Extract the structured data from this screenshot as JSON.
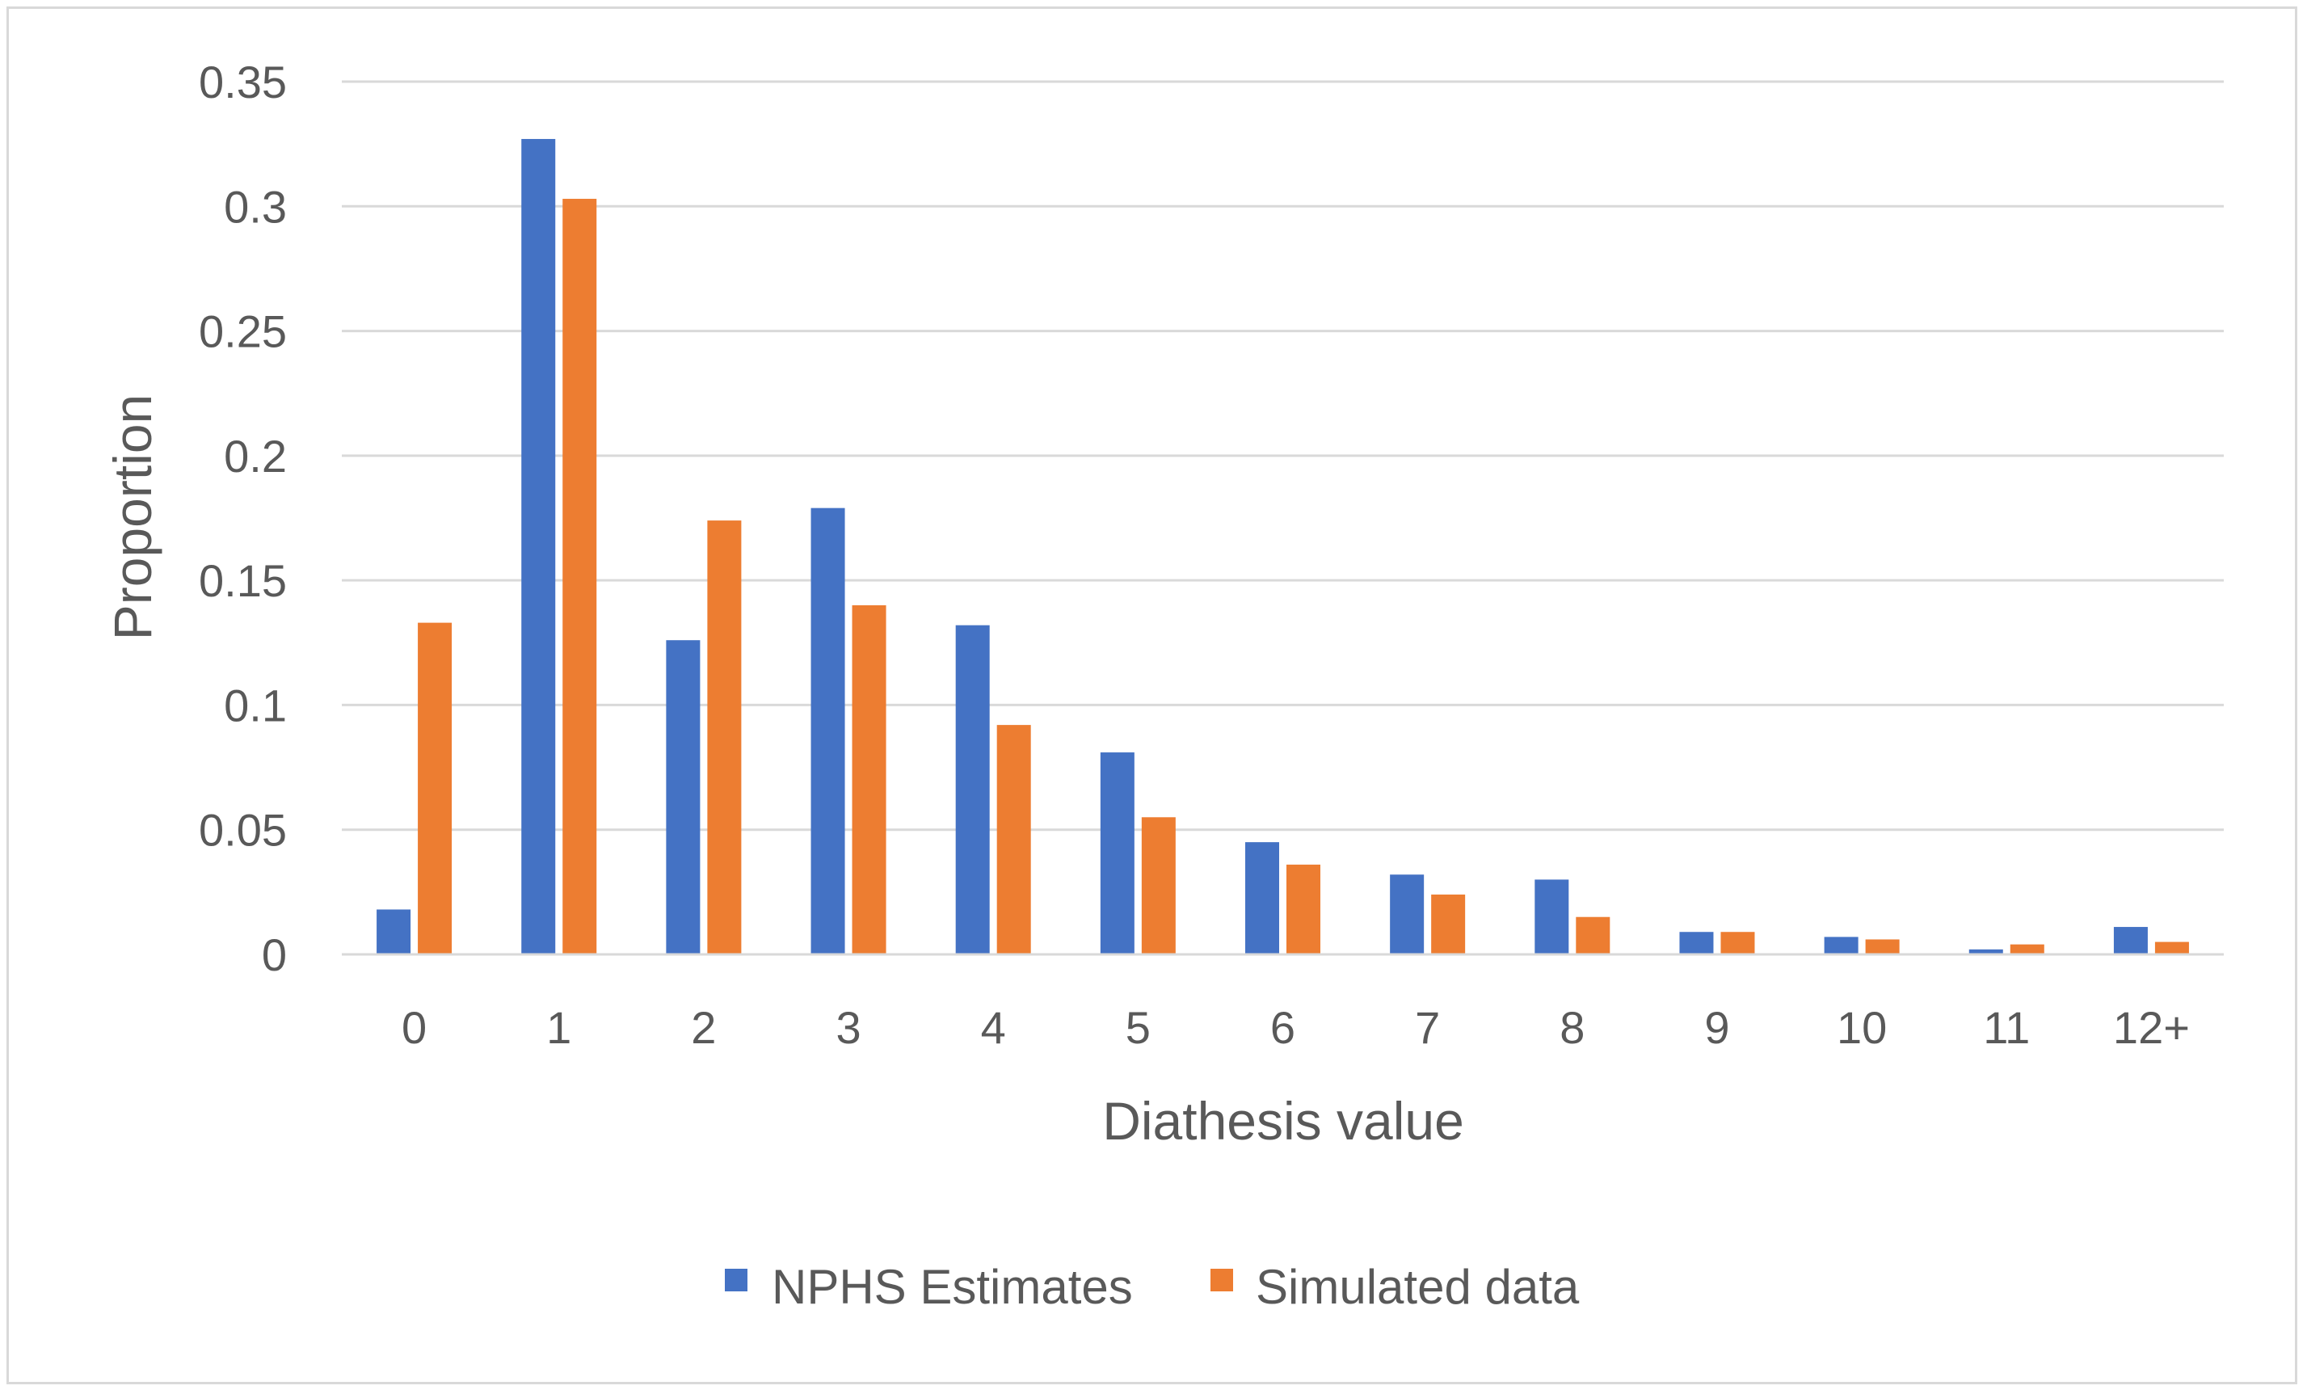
{
  "chart_data": {
    "type": "bar",
    "title": "",
    "xlabel": "Diathesis value",
    "ylabel": "Proportion",
    "ylim": [
      0,
      0.35
    ],
    "yticks": [
      0,
      0.05,
      0.1,
      0.15,
      0.2,
      0.25,
      0.3,
      0.35
    ],
    "ytick_labels": [
      "0",
      "0.05",
      "0.1",
      "0.15",
      "0.2",
      "0.25",
      "0.3",
      "0.35"
    ],
    "grid": true,
    "legend_position": "bottom",
    "categories": [
      "0",
      "1",
      "2",
      "3",
      "4",
      "5",
      "6",
      "7",
      "8",
      "9",
      "10",
      "11",
      "12+"
    ],
    "series": [
      {
        "name": "NPHS Estimates",
        "color": "#4472c4",
        "values": [
          0.018,
          0.327,
          0.126,
          0.179,
          0.132,
          0.081,
          0.045,
          0.032,
          0.03,
          0.009,
          0.007,
          0.002,
          0.011
        ]
      },
      {
        "name": "Simulated data",
        "color": "#ed7d31",
        "values": [
          0.133,
          0.303,
          0.174,
          0.14,
          0.092,
          0.055,
          0.036,
          0.024,
          0.015,
          0.009,
          0.006,
          0.004,
          0.005
        ]
      }
    ],
    "colors": {
      "grid": "#d9d9d9",
      "axis": "#d9d9d9",
      "text": "#595959"
    }
  }
}
